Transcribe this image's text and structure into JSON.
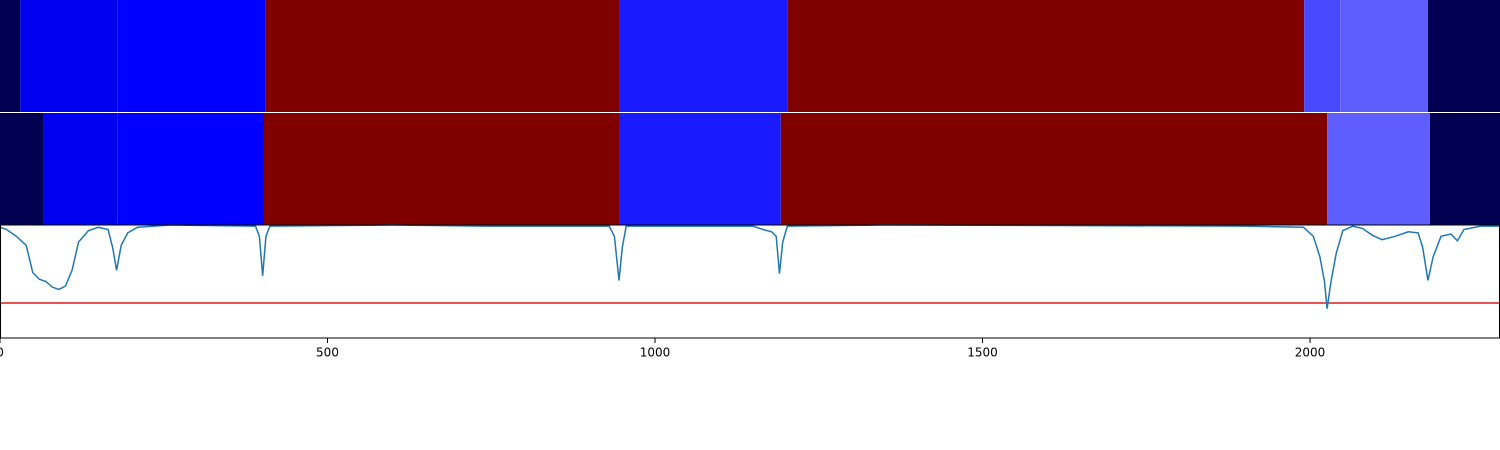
{
  "chart_data": {
    "type": "segmentation",
    "xlim": [
      0,
      2290
    ],
    "ylim": [
      0,
      1
    ],
    "xticks": [
      0,
      500,
      1000,
      1500,
      2000
    ],
    "rows": [
      {
        "segments": [
          {
            "start": 0,
            "end": 31,
            "color": "#000050"
          },
          {
            "start": 31,
            "end": 179,
            "color": "#0000f0"
          },
          {
            "start": 179,
            "end": 405,
            "color": "#0000ff"
          },
          {
            "start": 405,
            "end": 945,
            "color": "#800000"
          },
          {
            "start": 945,
            "end": 1202,
            "color": "#1a1aff"
          },
          {
            "start": 1202,
            "end": 1991,
            "color": "#800000"
          },
          {
            "start": 1991,
            "end": 2046,
            "color": "#4848ff"
          },
          {
            "start": 2046,
            "end": 2180,
            "color": "#5e5eff"
          },
          {
            "start": 2180,
            "end": 2290,
            "color": "#000050"
          }
        ]
      },
      {
        "segments": [
          {
            "start": 0,
            "end": 67,
            "color": "#000050"
          },
          {
            "start": 67,
            "end": 179,
            "color": "#0000f0"
          },
          {
            "start": 179,
            "end": 403,
            "color": "#0000ff"
          },
          {
            "start": 403,
            "end": 945,
            "color": "#800000"
          },
          {
            "start": 945,
            "end": 1192,
            "color": "#1a1aff"
          },
          {
            "start": 1192,
            "end": 2026,
            "color": "#800000"
          },
          {
            "start": 2026,
            "end": 2183,
            "color": "#5e5eff"
          },
          {
            "start": 2183,
            "end": 2290,
            "color": "#000050"
          }
        ]
      }
    ],
    "line": {
      "color": "#1f77b4",
      "x": [
        0,
        10,
        25,
        40,
        50,
        60,
        70,
        80,
        90,
        100,
        110,
        120,
        135,
        150,
        165,
        172,
        178,
        185,
        195,
        210,
        260,
        390,
        396,
        401,
        406,
        412,
        600,
        740,
        800,
        930,
        938,
        945,
        950,
        956,
        1150,
        1165,
        1178,
        1185,
        1190,
        1195,
        1202,
        1350,
        1900,
        1990,
        2005,
        2015,
        2022,
        2026,
        2032,
        2040,
        2050,
        2065,
        2080,
        2095,
        2110,
        2130,
        2150,
        2165,
        2172,
        2180,
        2188,
        2200,
        2215,
        2225,
        2235,
        2260,
        2290
      ],
      "values": [
        0.98,
        0.96,
        0.9,
        0.82,
        0.58,
        0.52,
        0.5,
        0.45,
        0.43,
        0.46,
        0.6,
        0.85,
        0.95,
        0.98,
        0.96,
        0.8,
        0.6,
        0.82,
        0.93,
        0.98,
        1.0,
        0.99,
        0.9,
        0.55,
        0.9,
        0.99,
        1.0,
        0.99,
        0.99,
        0.99,
        0.9,
        0.51,
        0.8,
        0.99,
        0.99,
        0.96,
        0.94,
        0.9,
        0.57,
        0.85,
        0.99,
        1.0,
        0.99,
        0.98,
        0.9,
        0.72,
        0.5,
        0.26,
        0.5,
        0.75,
        0.95,
        0.99,
        0.97,
        0.91,
        0.87,
        0.9,
        0.94,
        0.93,
        0.8,
        0.51,
        0.72,
        0.9,
        0.92,
        0.86,
        0.96,
        0.99,
        0.99
      ]
    },
    "threshold": {
      "value": 0.31,
      "color": "#e41a1c"
    }
  }
}
